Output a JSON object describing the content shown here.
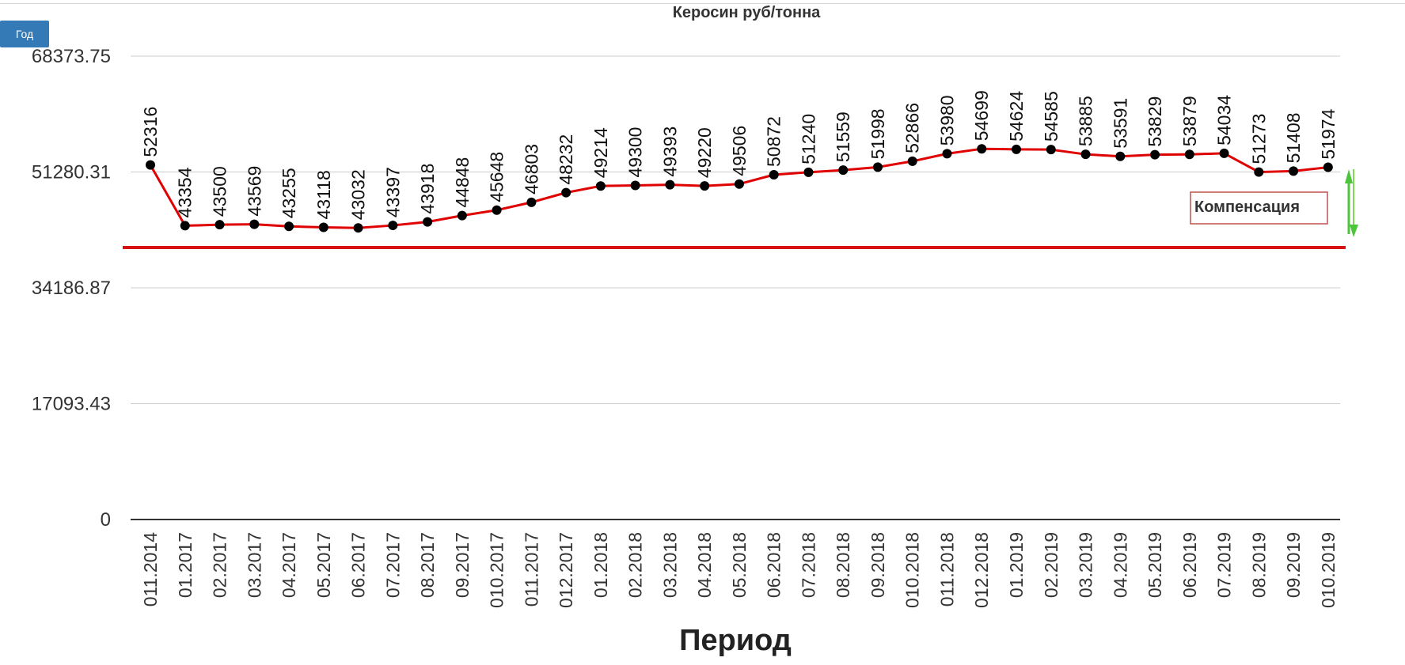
{
  "controls": {
    "year_button": "Год"
  },
  "chart_data": {
    "type": "line",
    "title": "Керосин руб/тонна",
    "xlabel": "Период",
    "ylabel": "",
    "ylim": [
      0,
      68373.75
    ],
    "yticks": [
      "0",
      "17093.43",
      "34186.87",
      "51280.31",
      "68373.75"
    ],
    "yticks_values": [
      0,
      17093.43,
      34186.87,
      51280.31,
      68373.75
    ],
    "grid": true,
    "categories": [
      "011.2014",
      "01.2017",
      "02.2017",
      "03.2017",
      "04.2017",
      "05.2017",
      "06.2017",
      "07.2017",
      "08.2017",
      "09.2017",
      "010.2017",
      "011.2017",
      "012.2017",
      "01.2018",
      "02.2018",
      "03.2018",
      "04.2018",
      "05.2018",
      "06.2018",
      "07.2018",
      "08.2018",
      "09.2018",
      "010.2018",
      "011.2018",
      "012.2018",
      "01.2019",
      "02.2019",
      "03.2019",
      "04.2019",
      "05.2019",
      "06.2019",
      "07.2019",
      "08.2019",
      "09.2019",
      "010.2019"
    ],
    "series": [
      {
        "values": [
          52316,
          43354,
          43500,
          43569,
          43255,
          43118,
          43032,
          43397,
          43918,
          44848,
          45648,
          46803,
          48232,
          49214,
          49300,
          49393,
          49220,
          49506,
          50872,
          51240,
          51559,
          51998,
          52866,
          53980,
          54699,
          54624,
          54585,
          53885,
          53591,
          53829,
          53879,
          54034,
          51273,
          51408,
          51974
        ],
        "color": "#e00000",
        "marker_color": "#000000"
      }
    ],
    "reference_line": {
      "color": "#d81010"
    },
    "annotations": [
      {
        "text": "Компенсация",
        "border_color": "#c0504d",
        "arrow_color": "#4cc43c"
      }
    ]
  }
}
